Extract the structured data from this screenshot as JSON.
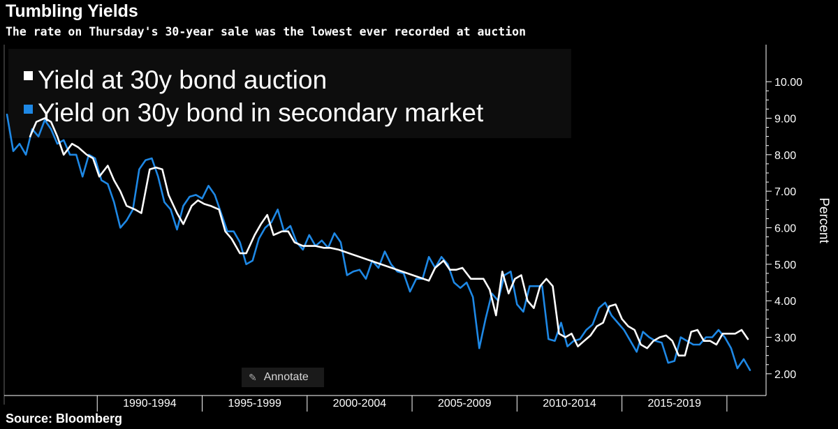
{
  "header": {
    "title": "Tumbling Yields",
    "subtitle": "The rate on Thursday's 30-year sale was the lowest ever recorded at auction"
  },
  "footer": {
    "source": "Source: Bloomberg"
  },
  "annotate_button": {
    "label": "Annotate"
  },
  "colors": {
    "auction": "#ffffff",
    "secondary": "#1e88e5",
    "background": "#000000",
    "axis": "#ffffff"
  },
  "chart_data": {
    "type": "line",
    "title": "Tumbling Yields",
    "subtitle": "The rate on Thursday's 30-year sale was the lowest ever recorded at auction",
    "xlabel": "",
    "ylabel": "Percent",
    "ylim": [
      1.5,
      10.9
    ],
    "xlim": [
      1985.7,
      2021.5
    ],
    "yticks": [
      2,
      3,
      4,
      5,
      6,
      7,
      8,
      9,
      10
    ],
    "ytick_labels": [
      "2.00",
      "3.00",
      "4.00",
      "5.00",
      "6.00",
      "7.00",
      "8.00",
      "9.00",
      "10.00"
    ],
    "year_boundaries": [
      1990,
      1995,
      2000,
      2005,
      2010,
      2015,
      2020
    ],
    "categories": [
      "1990-1994",
      "1995-1999",
      "2000-2004",
      "2005-2009",
      "2010-2014",
      "2015-2019"
    ],
    "category_centers": [
      1992.5,
      1997.5,
      2002.5,
      2007.5,
      2012.5,
      2017.5
    ],
    "legend": [
      "Yield at 30y bond auction",
      "Yield on 30y bond in secondary market"
    ],
    "legend_position": "top-left",
    "grid": false,
    "series": [
      {
        "name": "Yield at 30y bond auction",
        "color": "#ffffff",
        "x": [
          1986.8,
          1987.1,
          1987.5,
          1987.8,
          1988.1,
          1988.4,
          1988.8,
          1989.1,
          1989.5,
          1989.8,
          1990.1,
          1990.5,
          1990.8,
          1991.1,
          1991.4,
          1991.8,
          1992.1,
          1992.5,
          1992.8,
          1993.1,
          1993.4,
          1993.8,
          1994.1,
          1994.5,
          1994.8,
          1995.1,
          1995.4,
          1995.8,
          1996.1,
          1996.4,
          1996.8,
          1997.1,
          1997.5,
          1997.8,
          1998.1,
          1998.4,
          1998.8,
          1999.1,
          1999.4,
          1999.8,
          2000.1,
          2000.4,
          2000.8,
          2001.1,
          2001.5,
          2005.8,
          2006.1,
          2006.5,
          2006.8,
          2007.1,
          2007.4,
          2007.8,
          2008.1,
          2008.4,
          2008.7,
          2009.0,
          2009.3,
          2009.6,
          2009.9,
          2010.2,
          2010.5,
          2010.8,
          2011.1,
          2011.4,
          2011.7,
          2012.0,
          2012.3,
          2012.6,
          2012.9,
          2013.2,
          2013.5,
          2013.8,
          2014.1,
          2014.4,
          2014.7,
          2015.0,
          2015.3,
          2015.6,
          2015.9,
          2016.2,
          2016.5,
          2016.8,
          2017.1,
          2017.4,
          2017.7,
          2018.0,
          2018.3,
          2018.6,
          2018.9,
          2019.2,
          2019.5,
          2019.8,
          2020.1,
          2020.4,
          2020.7,
          2021.0
        ],
        "values": [
          8.5,
          8.9,
          9.0,
          8.9,
          8.5,
          8.0,
          8.3,
          8.2,
          8.0,
          7.9,
          7.4,
          7.7,
          7.3,
          7.0,
          6.6,
          6.5,
          6.4,
          7.6,
          7.65,
          7.6,
          6.9,
          6.4,
          6.1,
          6.6,
          6.75,
          6.65,
          6.6,
          6.5,
          5.9,
          5.7,
          5.3,
          5.3,
          5.8,
          6.1,
          6.35,
          5.8,
          5.9,
          5.9,
          5.6,
          5.5,
          5.5,
          5.5,
          5.45,
          5.45,
          5.4,
          4.55,
          4.9,
          5.1,
          4.85,
          4.85,
          4.9,
          4.6,
          4.6,
          4.6,
          4.3,
          3.6,
          4.8,
          4.2,
          4.6,
          4.7,
          4.0,
          3.8,
          4.4,
          4.6,
          4.4,
          3.1,
          3.0,
          3.1,
          2.75,
          2.9,
          3.05,
          3.3,
          3.4,
          3.85,
          3.9,
          3.5,
          3.3,
          3.2,
          2.8,
          2.7,
          2.9,
          3.0,
          3.05,
          2.9,
          2.5,
          2.5,
          3.15,
          3.2,
          2.9,
          2.9,
          2.8,
          3.1,
          3.1,
          3.1,
          3.2,
          2.95
        ]
      },
      {
        "name": "Yield on 30y bond in secondary market",
        "color": "#1e88e5",
        "x": [
          1985.7,
          1986.0,
          1986.3,
          1986.6,
          1986.9,
          1987.2,
          1987.5,
          1987.8,
          1988.1,
          1988.4,
          1988.7,
          1989.0,
          1989.3,
          1989.6,
          1989.9,
          1990.2,
          1990.5,
          1990.8,
          1991.1,
          1991.4,
          1991.7,
          1992.0,
          1992.3,
          1992.6,
          1992.9,
          1993.2,
          1993.5,
          1993.8,
          1994.1,
          1994.4,
          1994.7,
          1995.0,
          1995.3,
          1995.6,
          1995.9,
          1996.2,
          1996.5,
          1996.8,
          1997.1,
          1997.4,
          1997.7,
          1998.0,
          1998.3,
          1998.6,
          1998.9,
          1999.2,
          1999.5,
          1999.8,
          2000.1,
          2000.4,
          2000.7,
          2001.0,
          2001.3,
          2001.6,
          2001.9,
          2002.2,
          2002.5,
          2002.8,
          2003.1,
          2003.4,
          2003.7,
          2004.0,
          2004.3,
          2004.6,
          2004.9,
          2005.2,
          2005.5,
          2005.8,
          2006.1,
          2006.4,
          2006.7,
          2007.0,
          2007.3,
          2007.6,
          2007.9,
          2008.2,
          2008.5,
          2008.8,
          2009.1,
          2009.4,
          2009.7,
          2010.0,
          2010.3,
          2010.6,
          2010.9,
          2011.2,
          2011.5,
          2011.8,
          2012.1,
          2012.4,
          2012.7,
          2013.0,
          2013.3,
          2013.6,
          2013.9,
          2014.2,
          2014.5,
          2014.8,
          2015.1,
          2015.4,
          2015.7,
          2016.0,
          2016.3,
          2016.6,
          2016.9,
          2017.2,
          2017.5,
          2017.8,
          2018.1,
          2018.4,
          2018.7,
          2019.0,
          2019.3,
          2019.6,
          2019.9,
          2020.2,
          2020.5,
          2020.8,
          2021.1
        ],
        "values": [
          9.1,
          8.1,
          8.3,
          8.0,
          8.7,
          8.5,
          8.95,
          8.7,
          8.3,
          8.4,
          8.0,
          8.0,
          7.4,
          8.0,
          7.9,
          7.3,
          7.2,
          6.7,
          6.0,
          6.2,
          6.5,
          7.6,
          7.85,
          7.9,
          7.4,
          6.7,
          6.5,
          5.95,
          6.6,
          6.85,
          6.9,
          6.8,
          7.15,
          6.9,
          6.4,
          5.9,
          5.9,
          5.6,
          5.0,
          5.1,
          5.7,
          6.0,
          6.15,
          6.5,
          5.9,
          6.05,
          5.6,
          5.4,
          5.8,
          5.5,
          5.65,
          5.45,
          5.85,
          5.6,
          4.7,
          4.8,
          4.85,
          4.6,
          5.1,
          4.9,
          5.35,
          5.0,
          4.8,
          4.75,
          4.25,
          4.6,
          4.6,
          5.2,
          4.9,
          5.2,
          5.0,
          4.5,
          4.35,
          4.5,
          4.1,
          2.7,
          3.5,
          4.2,
          4.0,
          4.7,
          4.8,
          3.9,
          3.7,
          4.4,
          4.4,
          4.4,
          2.95,
          2.9,
          3.4,
          2.75,
          2.9,
          2.95,
          3.2,
          3.35,
          3.8,
          3.95,
          3.6,
          3.4,
          3.2,
          2.9,
          2.6,
          3.15,
          3.0,
          2.9,
          2.85,
          2.3,
          2.35,
          3.0,
          2.9,
          2.8,
          2.8,
          3.0,
          3.0,
          3.2,
          3.0,
          2.7,
          2.15,
          2.4,
          2.1
        ]
      }
    ]
  }
}
